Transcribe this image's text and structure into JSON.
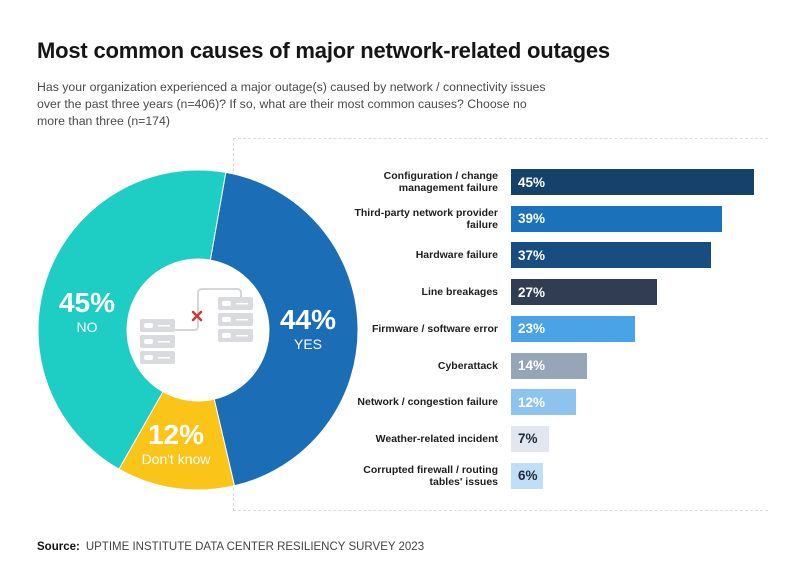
{
  "header": {
    "title": "Most common causes of major network-related outages",
    "subtitle": "Has your organization experienced a major outage(s) caused by network / connectivity issues over the past three years (n=406)? If so, what are their most common causes? Choose no more than three (n=174)"
  },
  "center_icon": "servers-disconnected-icon",
  "chart_data": [
    {
      "type": "pie",
      "subtype": "donut",
      "title": "Has your organization experienced a major outage(s) caused by network / connectivity issues over the past three years (n=406)?",
      "slices": [
        {
          "label": "YES",
          "value": 44,
          "display": "44%",
          "color": "#1b6db5"
        },
        {
          "label": "Don't know",
          "value": 12,
          "display": "12%",
          "color": "#fbc418"
        },
        {
          "label": "NO",
          "value": 45,
          "display": "45%",
          "color": "#1ecdc4"
        }
      ]
    },
    {
      "type": "bar",
      "orientation": "horizontal",
      "title": "Most common causes (n=174)",
      "xlim": [
        0,
        45
      ],
      "categories": [
        "Configuration / change management failure",
        "Third-party network provider failure",
        "Hardware failure",
        "Line breakages",
        "Firmware / software error",
        "Cyberattack",
        "Network / congestion failure",
        "Weather-related incident",
        "Corrupted firewall / routing tables' issues"
      ],
      "values": [
        45,
        39,
        37,
        27,
        23,
        14,
        12,
        7,
        6
      ],
      "labels": [
        "45%",
        "39%",
        "37%",
        "27%",
        "23%",
        "14%",
        "12%",
        "7%",
        "6%"
      ],
      "colors": [
        "#16416b",
        "#1b72bb",
        "#174d80",
        "#313d52",
        "#4aa3e6",
        "#97a5b8",
        "#8cc4ef",
        "#e2e7ef",
        "#c0dff6"
      ],
      "dark_text": [
        false,
        false,
        false,
        false,
        false,
        false,
        false,
        true,
        true
      ]
    }
  ],
  "footer": {
    "source_label": "Source:",
    "source_text": "UPTIME INSTITUTE DATA CENTER RESILIENCY SURVEY 2023"
  }
}
